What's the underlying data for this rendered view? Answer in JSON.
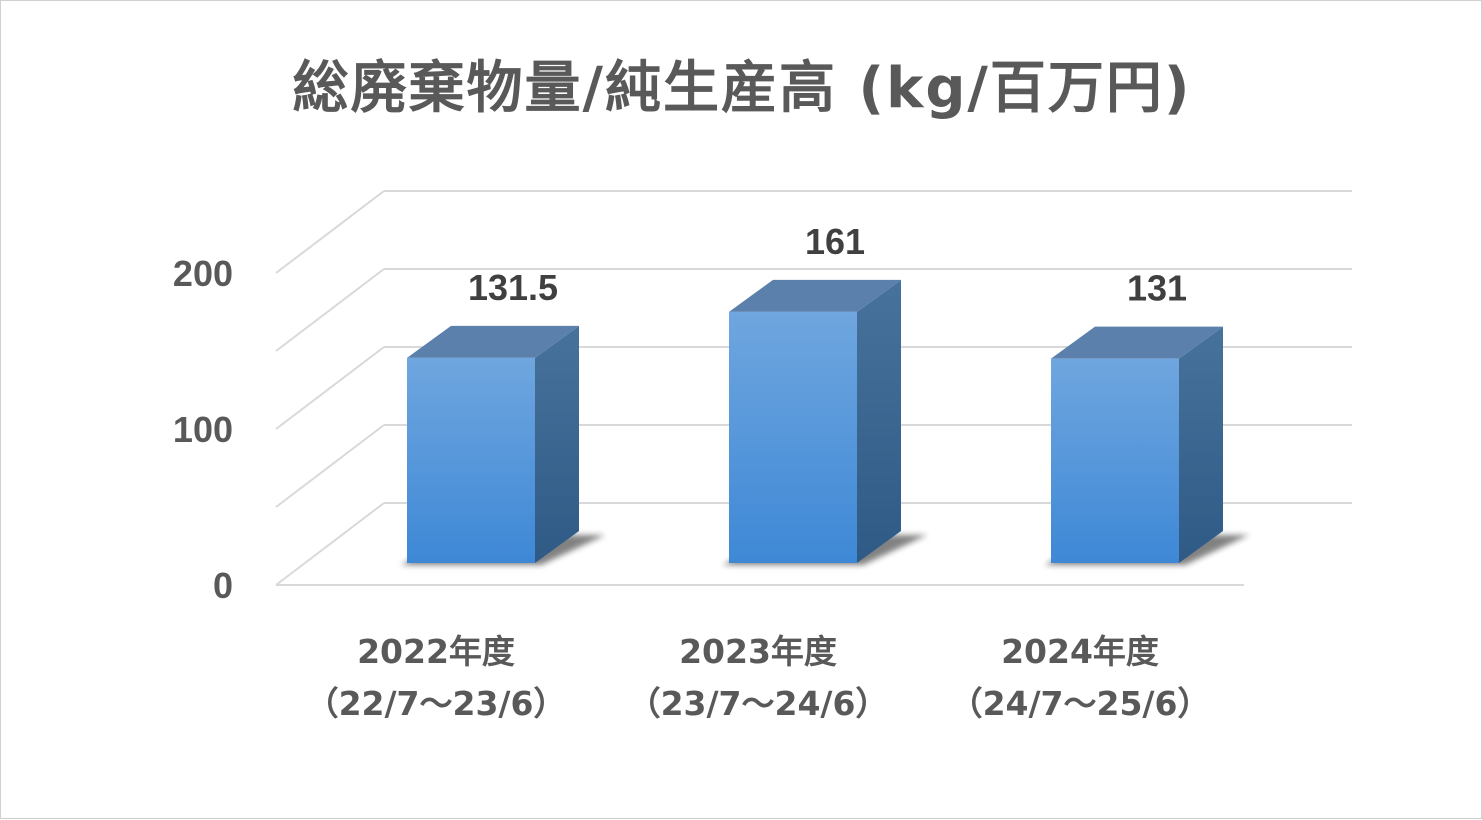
{
  "chart_data": {
    "type": "bar",
    "title": "総廃棄物量/純生産高 (kg/百万円)",
    "categories": [
      [
        "2022年度",
        "（22/7～23/6）"
      ],
      [
        "2023年度",
        "（23/7～24/6）"
      ],
      [
        "2024年度",
        "（24/7～25/6）"
      ]
    ],
    "values": [
      131.5,
      161,
      131
    ],
    "data_labels": [
      "131.5",
      "161",
      "131"
    ],
    "y_ticks": [
      "0",
      "100",
      "200"
    ],
    "ylim": [
      0,
      200
    ],
    "grid": true,
    "style": "3d-column",
    "colors": {
      "bar_front_top": "#6fa6df",
      "bar_front_bottom": "#3e88d6",
      "bar_side": "#3b6892",
      "bar_top": "#5a80ab",
      "grid": "#d9d9d9",
      "text": "#595959"
    }
  }
}
